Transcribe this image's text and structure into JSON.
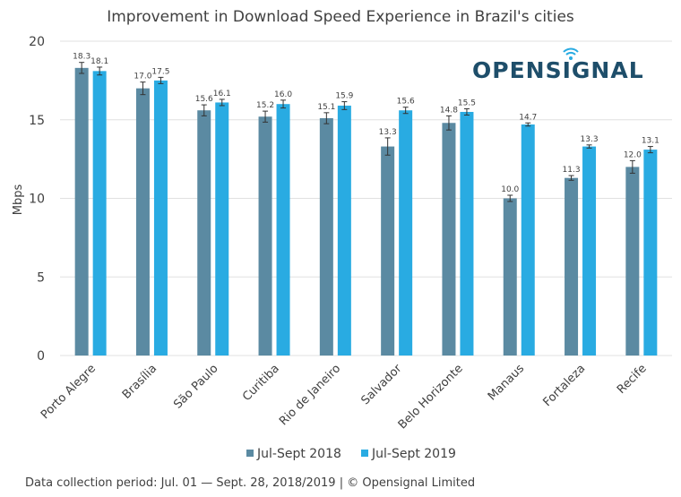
{
  "chart_data": {
    "type": "bar",
    "title": "Improvement in Download Speed Experience in Brazil's cities",
    "ylabel": "Mbps",
    "xlabel": "",
    "ylim": [
      0,
      20
    ],
    "yticks": [
      0,
      5,
      10,
      15,
      20
    ],
    "grid": true,
    "legend_position": "bottom",
    "categories": [
      "Porto Alegre",
      "Brasília",
      "São Paulo",
      "Curitiba",
      "Rio de Janeiro",
      "Salvador",
      "Belo Horizonte",
      "Manaus",
      "Fortaleza",
      "Recife"
    ],
    "series": [
      {
        "name": "Jul-Sept 2018",
        "color": "#5b8aa2",
        "values": [
          18.3,
          17.0,
          15.6,
          15.2,
          15.1,
          13.3,
          14.8,
          10.0,
          11.3,
          12.0
        ],
        "labels": [
          "18.3",
          "17.0",
          "15.6",
          "15.2",
          "15.1",
          "13.3",
          "14.8",
          "10.0",
          "11.3",
          "12.0"
        ],
        "error": [
          0.35,
          0.4,
          0.35,
          0.35,
          0.35,
          0.55,
          0.45,
          0.2,
          0.15,
          0.4
        ]
      },
      {
        "name": "Jul-Sept 2019",
        "color": "#29abe2",
        "values": [
          18.1,
          17.5,
          16.1,
          16.0,
          15.9,
          15.6,
          15.5,
          14.7,
          13.3,
          13.1
        ],
        "labels": [
          "18.1",
          "17.5",
          "16.1",
          "16.0",
          "15.9",
          "15.6",
          "15.5",
          "14.7",
          "13.3",
          "13.1"
        ],
        "error": [
          0.25,
          0.2,
          0.2,
          0.25,
          0.25,
          0.2,
          0.2,
          0.1,
          0.1,
          0.2
        ]
      }
    ]
  },
  "logo": {
    "text_before": "OPENS",
    "text_after": "GNAL",
    "color": "#1e4e6a",
    "accent": "#29abe2"
  },
  "footer": "Data collection period: Jul. 01 — Sept. 28, 2018/2019 | © Opensignal Limited"
}
